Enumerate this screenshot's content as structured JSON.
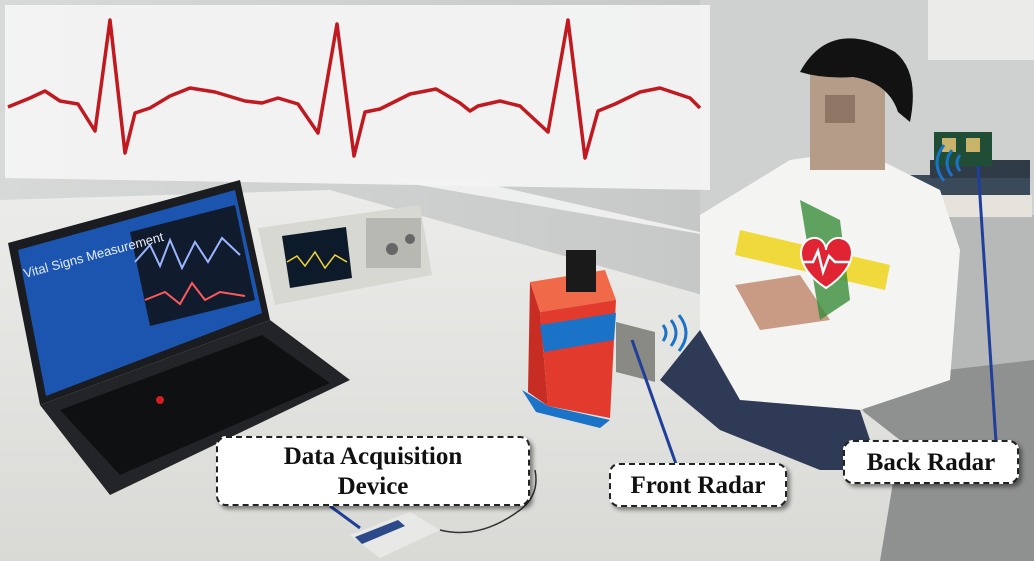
{
  "labels": {
    "daq_line1": "Data Acquisition",
    "daq_line2": "Device",
    "front_radar": "Front Radar",
    "back_radar": "Back Radar"
  },
  "colors": {
    "ecg_trace": "#c0191f",
    "pointer_line": "#1f3f9a",
    "box_red": "#e23b2e",
    "tape_blue": "#1a73c7",
    "heart": "#e02434"
  },
  "icons": [
    "heart-icon",
    "wireless-signal-icon"
  ]
}
